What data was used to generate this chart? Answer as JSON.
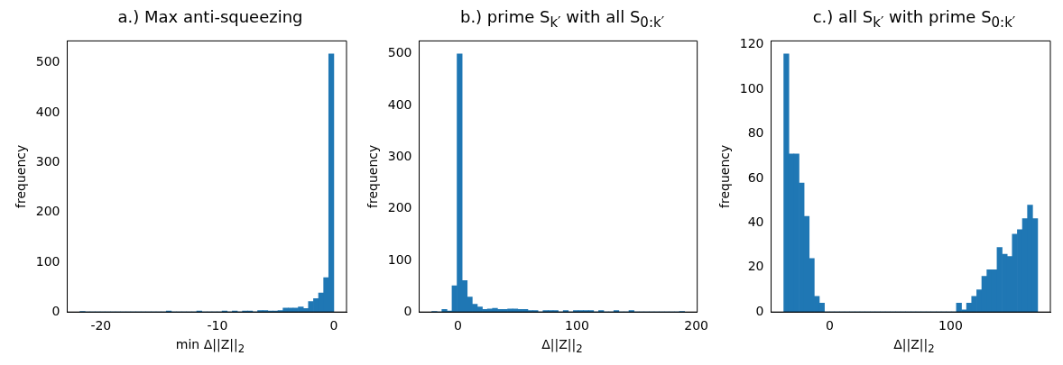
{
  "chart_data": [
    {
      "type": "histogram",
      "title": "a.) Max anti-squeezing",
      "xlabel": "min Δ||Z||$_{2}$",
      "ylabel": "frequency",
      "color": "#1f77b4",
      "bins": [
        -21.8,
        -21.364,
        -20.928,
        -20.492,
        -20.056,
        -19.62,
        -19.184,
        -18.748,
        -18.312,
        -17.876,
        -17.44,
        -17.004,
        -16.568,
        -16.132,
        -15.696,
        -15.26,
        -14.824,
        -14.388,
        -13.952,
        -13.516,
        -13.08,
        -12.644,
        -12.208,
        -11.772,
        -11.336,
        -10.9,
        -10.464,
        -10.028,
        -9.592,
        -9.156,
        -8.72,
        -8.284,
        -7.848,
        -7.412,
        -6.976,
        -6.54,
        -6.104,
        -5.668,
        -5.232,
        -4.796,
        -4.36,
        -3.924,
        -3.488,
        -3.052,
        -2.616,
        -2.18,
        -1.744,
        -1.308,
        -0.872,
        -0.436,
        0
      ],
      "values": [
        1,
        0,
        0,
        0,
        0,
        0,
        0,
        0,
        0,
        0,
        0,
        0,
        0,
        0,
        0,
        0,
        0,
        2,
        0,
        0,
        0,
        0,
        0,
        2,
        0,
        0,
        0,
        0,
        2,
        0,
        2,
        0,
        2,
        2,
        0,
        3,
        3,
        2,
        2,
        3,
        8,
        8,
        8,
        10,
        7,
        21,
        27,
        38,
        69,
        518
      ],
      "xlim": [
        -22.89,
        1.09
      ],
      "xticks": [
        -20,
        -10,
        0
      ],
      "ylim": [
        0,
        544
      ],
      "yticks": [
        0,
        100,
        200,
        300,
        400,
        500
      ]
    },
    {
      "type": "histogram",
      "title": "b.) prime S$_{k′}$ with all S$_{0:k′}$",
      "xlabel": "Δ||Z||$_{2}$",
      "ylabel": "frequency",
      "color": "#1f77b4",
      "bins": [
        -21.8,
        -17.56,
        -13.32,
        -9.08,
        -4.84,
        -0.6,
        3.64,
        7.88,
        12.12,
        16.36,
        20.6,
        24.84,
        29.08,
        33.32,
        37.56,
        41.8,
        46.04,
        50.28,
        54.52,
        58.76,
        63,
        67.24,
        71.48,
        75.72,
        79.96,
        84.2,
        88.44,
        92.68,
        96.92,
        101.16,
        105.4,
        109.64,
        113.88,
        118.12,
        122.36,
        126.6,
        130.84,
        135.08,
        139.32,
        143.56,
        147.8,
        152.04,
        156.28,
        160.52,
        164.76,
        169,
        173.24,
        177.48,
        181.72,
        185.96,
        190.2
      ],
      "values": [
        1,
        0,
        5,
        2,
        51,
        500,
        61,
        29,
        15,
        10,
        5,
        6,
        7,
        5,
        5,
        6,
        6,
        5,
        5,
        3,
        3,
        0,
        3,
        3,
        3,
        0,
        3,
        0,
        3,
        3,
        3,
        3,
        0,
        3,
        0,
        0,
        3,
        0,
        0,
        3,
        0,
        0,
        0,
        0,
        0,
        0,
        0,
        0,
        0,
        1
      ],
      "xlim": [
        -32.4,
        200.8
      ],
      "xticks": [
        0,
        100,
        200
      ],
      "ylim": [
        0,
        525
      ],
      "yticks": [
        0,
        100,
        200,
        300,
        400,
        500
      ]
    },
    {
      "type": "histogram",
      "title": "c.) all S$_{k′}$ with prime S$_{0:k′}$",
      "xlabel": "Δ||Z||$_{2}$",
      "ylabel": "frequency",
      "color": "#1f77b4",
      "bins": [
        -38,
        -33.8,
        -29.6,
        -25.4,
        -21.2,
        -17,
        -12.8,
        -8.6,
        -4.4,
        -0.2,
        4,
        8.2,
        12.4,
        16.6,
        20.8,
        25,
        29.2,
        33.4,
        37.6,
        41.8,
        46,
        50.2,
        54.4,
        58.6,
        62.8,
        67,
        71.2,
        75.4,
        79.6,
        83.8,
        88,
        92.2,
        96.4,
        100.6,
        104.8,
        109,
        113.2,
        117.4,
        121.6,
        125.8,
        130,
        134.2,
        138.4,
        142.6,
        146.8,
        151,
        155.2,
        159.4,
        163.6,
        167.8,
        172
      ],
      "values": [
        116,
        71,
        71,
        58,
        43,
        24,
        7,
        4,
        0,
        0,
        0,
        0,
        0,
        0,
        0,
        0,
        0,
        0,
        0,
        0,
        0,
        0,
        0,
        0,
        0,
        0,
        0,
        0,
        0,
        0,
        0,
        0,
        0,
        0,
        4,
        1,
        4,
        7,
        10,
        16,
        19,
        19,
        29,
        26,
        25,
        35,
        37,
        42,
        48,
        42
      ],
      "xlim": [
        -48.5,
        182.5
      ],
      "xticks": [
        0,
        100
      ],
      "ylim": [
        0,
        121.8
      ],
      "yticks": [
        0,
        20,
        40,
        60,
        80,
        100,
        120
      ]
    }
  ]
}
